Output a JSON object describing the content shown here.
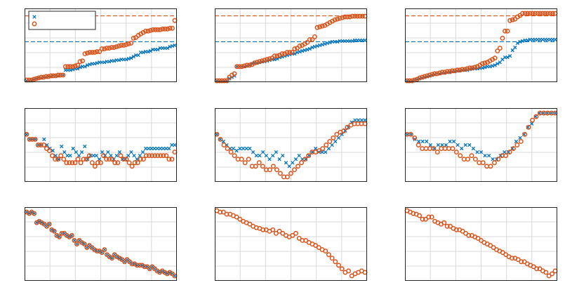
{
  "chart_data": [
    {
      "type": "scatter",
      "refs": [
        {
          "y": 0.55,
          "color": "#0072BD"
        },
        {
          "y": 0.915,
          "color": "#D95319"
        }
      ],
      "series": [
        {
          "marker": "x",
          "color": "#0072BD",
          "values": [
            0.0,
            0.0,
            0.0,
            0.02,
            0.03,
            0.04,
            0.04,
            0.05,
            0.05,
            0.06,
            0.06,
            0.07,
            0.07,
            0.07,
            0.08,
            0.08,
            0.15,
            0.15,
            0.15,
            0.16,
            0.17,
            0.17,
            0.19,
            0.2,
            0.2,
            0.22,
            0.23,
            0.24,
            0.24,
            0.25,
            0.26,
            0.26,
            0.26,
            0.27,
            0.27,
            0.28,
            0.28,
            0.29,
            0.29,
            0.3,
            0.3,
            0.3,
            0.31,
            0.32,
            0.34,
            0.36,
            0.36,
            0.4,
            0.4,
            0.41,
            0.41,
            0.42,
            0.44,
            0.44,
            0.44,
            0.46,
            0.46,
            0.46,
            0.46,
            0.48,
            0.49,
            0.5
          ]
        },
        {
          "marker": "o",
          "color": "#D95319",
          "values": [
            0.01,
            0.01,
            0.01,
            0.02,
            0.03,
            0.04,
            0.05,
            0.05,
            0.06,
            0.06,
            0.07,
            0.07,
            0.07,
            0.08,
            0.08,
            0.08,
            0.2,
            0.2,
            0.2,
            0.2,
            0.21,
            0.22,
            0.27,
            0.28,
            0.38,
            0.39,
            0.4,
            0.4,
            0.4,
            0.41,
            0.41,
            0.45,
            0.45,
            0.46,
            0.46,
            0.47,
            0.47,
            0.48,
            0.49,
            0.5,
            0.5,
            0.51,
            0.52,
            0.53,
            0.6,
            0.61,
            0.64,
            0.66,
            0.68,
            0.7,
            0.7,
            0.71,
            0.72,
            0.72,
            0.72,
            0.72,
            0.73,
            0.73,
            0.73,
            0.74,
            0.74,
            0.85
          ]
        }
      ],
      "legend": [
        "",
        ""
      ]
    },
    {
      "type": "scatter",
      "refs": [
        {
          "y": 0.55,
          "color": "#0072BD"
        },
        {
          "y": 0.915,
          "color": "#D95319"
        }
      ],
      "series": [
        {
          "marker": "x",
          "color": "#0072BD",
          "values": [
            0.0,
            0.0,
            0.0,
            0.0,
            0.0,
            0.03,
            0.05,
            0.07,
            0.2,
            0.2,
            0.2,
            0.2,
            0.21,
            0.22,
            0.24,
            0.25,
            0.25,
            0.26,
            0.27,
            0.27,
            0.28,
            0.29,
            0.3,
            0.3,
            0.31,
            0.33,
            0.34,
            0.35,
            0.36,
            0.37,
            0.38,
            0.38,
            0.4,
            0.41,
            0.42,
            0.43,
            0.44,
            0.45,
            0.47,
            0.48,
            0.49,
            0.5,
            0.51,
            0.52,
            0.53,
            0.54,
            0.55,
            0.55,
            0.55,
            0.56,
            0.56,
            0.56,
            0.56,
            0.56,
            0.56,
            0.57,
            0.57,
            0.57,
            0.57,
            0.57
          ]
        },
        {
          "marker": "o",
          "color": "#D95319",
          "values": [
            0.0,
            0.0,
            0.0,
            0.0,
            0.0,
            0.05,
            0.08,
            0.1,
            0.2,
            0.2,
            0.2,
            0.21,
            0.22,
            0.22,
            0.23,
            0.25,
            0.26,
            0.27,
            0.28,
            0.29,
            0.3,
            0.31,
            0.32,
            0.35,
            0.35,
            0.36,
            0.38,
            0.38,
            0.4,
            0.4,
            0.4,
            0.45,
            0.46,
            0.49,
            0.5,
            0.52,
            0.54,
            0.58,
            0.58,
            0.62,
            0.75,
            0.76,
            0.77,
            0.78,
            0.8,
            0.82,
            0.84,
            0.86,
            0.87,
            0.88,
            0.89,
            0.9,
            0.9,
            0.9,
            0.91,
            0.91,
            0.91,
            0.91,
            0.91,
            0.91
          ]
        }
      ]
    },
    {
      "type": "scatter",
      "refs": [
        {
          "y": 0.55,
          "color": "#0072BD"
        },
        {
          "y": 0.915,
          "color": "#D95319"
        }
      ],
      "series": [
        {
          "marker": "x",
          "color": "#0072BD",
          "values": [
            0.0,
            0.0,
            0.0,
            0.01,
            0.02,
            0.03,
            0.04,
            0.05,
            0.06,
            0.07,
            0.08,
            0.09,
            0.1,
            0.1,
            0.11,
            0.11,
            0.12,
            0.12,
            0.13,
            0.13,
            0.14,
            0.14,
            0.15,
            0.15,
            0.15,
            0.16,
            0.17,
            0.17,
            0.17,
            0.18,
            0.18,
            0.19,
            0.2,
            0.2,
            0.21,
            0.22,
            0.24,
            0.26,
            0.3,
            0.33,
            0.33,
            0.35,
            0.43,
            0.47,
            0.53,
            0.55,
            0.56,
            0.57,
            0.57,
            0.58,
            0.58,
            0.58,
            0.58,
            0.58,
            0.58,
            0.58,
            0.58,
            0.58,
            0.58,
            0.58
          ]
        },
        {
          "marker": "o",
          "color": "#D95319",
          "values": [
            0.0,
            0.0,
            0.0,
            0.01,
            0.02,
            0.04,
            0.05,
            0.06,
            0.07,
            0.08,
            0.09,
            0.1,
            0.1,
            0.11,
            0.12,
            0.12,
            0.13,
            0.13,
            0.14,
            0.14,
            0.15,
            0.15,
            0.16,
            0.16,
            0.17,
            0.18,
            0.18,
            0.19,
            0.2,
            0.22,
            0.24,
            0.25,
            0.26,
            0.28,
            0.3,
            0.32,
            0.42,
            0.46,
            0.6,
            0.7,
            0.7,
            0.85,
            0.86,
            0.87,
            0.9,
            0.92,
            0.95,
            0.95,
            0.95,
            0.95,
            0.95,
            0.95,
            0.95,
            0.95,
            0.95,
            0.95,
            0.95,
            0.95,
            0.95,
            0.95
          ]
        }
      ]
    },
    {
      "type": "scatter",
      "series": [
        {
          "marker": "x",
          "color": "#0072BD",
          "values": [
            0.65,
            0.58,
            0.58,
            0.58,
            0.5,
            0.5,
            0.58,
            0.5,
            0.45,
            0.42,
            0.35,
            0.3,
            0.48,
            0.4,
            0.35,
            0.35,
            0.45,
            0.4,
            0.35,
            0.4,
            0.48,
            0.3,
            0.35,
            0.35,
            0.35,
            0.3,
            0.4,
            0.35,
            0.4,
            0.35,
            0.3,
            0.35,
            0.4,
            0.3,
            0.3,
            0.35,
            0.4,
            0.35,
            0.3,
            0.35,
            0.4,
            0.45,
            0.45,
            0.45,
            0.45,
            0.45,
            0.45,
            0.45,
            0.45,
            0.45,
            0.5,
            0.5
          ]
        },
        {
          "marker": "o",
          "color": "#D95319",
          "values": [
            0.65,
            0.58,
            0.58,
            0.58,
            0.5,
            0.5,
            0.5,
            0.45,
            0.42,
            0.35,
            0.3,
            0.3,
            0.35,
            0.3,
            0.25,
            0.25,
            0.25,
            0.25,
            0.3,
            0.25,
            0.3,
            0.3,
            0.35,
            0.25,
            0.2,
            0.25,
            0.25,
            0.35,
            0.3,
            0.3,
            0.3,
            0.25,
            0.25,
            0.35,
            0.3,
            0.3,
            0.25,
            0.2,
            0.25,
            0.25,
            0.3,
            0.3,
            0.35,
            0.35,
            0.35,
            0.35,
            0.35,
            0.35,
            0.35,
            0.35,
            0.3,
            0.3,
            0.4
          ]
        }
      ]
    },
    {
      "type": "scatter",
      "series": [
        {
          "marker": "x",
          "color": "#0072BD",
          "values": [
            0.65,
            0.58,
            0.55,
            0.5,
            0.45,
            0.45,
            0.42,
            0.45,
            0.45,
            0.45,
            0.45,
            0.4,
            0.35,
            0.35,
            0.4,
            0.35,
            0.3,
            0.35,
            0.4,
            0.3,
            0.35,
            0.25,
            0.2,
            0.25,
            0.3,
            0.35,
            0.3,
            0.3,
            0.35,
            0.4,
            0.45,
            0.4,
            0.4,
            0.4,
            0.45,
            0.5,
            0.55,
            0.6,
            0.65,
            0.7,
            0.75,
            0.82,
            0.85,
            0.85,
            0.85,
            0.85
          ]
        },
        {
          "marker": "o",
          "color": "#D95319",
          "values": [
            0.65,
            0.58,
            0.5,
            0.45,
            0.4,
            0.35,
            0.3,
            0.3,
            0.25,
            0.3,
            0.2,
            0.2,
            0.25,
            0.2,
            0.15,
            0.15,
            0.2,
            0.15,
            0.1,
            0.05,
            0.05,
            0.1,
            0.15,
            0.2,
            0.25,
            0.3,
            0.35,
            0.4,
            0.4,
            0.42,
            0.45,
            0.5,
            0.55,
            0.6,
            0.65,
            0.68,
            0.7,
            0.75,
            0.78,
            0.8,
            0.8,
            0.8,
            0.8
          ]
        }
      ]
    },
    {
      "type": "scatter",
      "series": [
        {
          "marker": "x",
          "color": "#0072BD",
          "values": [
            0.65,
            0.65,
            0.58,
            0.55,
            0.55,
            0.55,
            0.5,
            0.45,
            0.5,
            0.5,
            0.5,
            0.55,
            0.55,
            0.5,
            0.45,
            0.5,
            0.5,
            0.45,
            0.4,
            0.4,
            0.35,
            0.35,
            0.3,
            0.3,
            0.35,
            0.4,
            0.4,
            0.45,
            0.55,
            0.6,
            0.65,
            0.75,
            0.8,
            0.9,
            0.95,
            0.95,
            0.95,
            0.95,
            0.95
          ]
        },
        {
          "marker": "o",
          "color": "#D95319",
          "values": [
            0.65,
            0.65,
            0.6,
            0.5,
            0.45,
            0.45,
            0.45,
            0.45,
            0.4,
            0.45,
            0.45,
            0.45,
            0.45,
            0.4,
            0.35,
            0.3,
            0.3,
            0.35,
            0.3,
            0.25,
            0.25,
            0.2,
            0.2,
            0.25,
            0.3,
            0.35,
            0.35,
            0.4,
            0.45,
            0.5,
            0.55,
            0.65,
            0.75,
            0.85,
            0.9,
            0.95,
            0.95,
            0.95,
            0.95,
            0.95
          ]
        }
      ]
    },
    {
      "type": "scatter",
      "series": [
        {
          "marker": "o",
          "color": "#D95319",
          "x_cross_color": "#0072BD",
          "values": [
            0.95,
            0.93,
            0.95,
            0.93,
            0.8,
            0.82,
            0.8,
            0.78,
            0.75,
            0.78,
            0.7,
            0.68,
            0.62,
            0.6,
            0.65,
            0.65,
            0.62,
            0.6,
            0.62,
            0.55,
            0.5,
            0.55,
            0.52,
            0.5,
            0.45,
            0.48,
            0.45,
            0.42,
            0.4,
            0.4,
            0.38,
            0.42,
            0.35,
            0.32,
            0.3,
            0.35,
            0.32,
            0.3,
            0.28,
            0.25,
            0.28,
            0.25,
            0.22,
            0.22,
            0.2,
            0.2,
            0.2,
            0.18,
            0.18,
            0.15,
            0.18,
            0.15,
            0.12,
            0.1,
            0.12,
            0.1,
            0.08,
            0.1,
            0.08,
            0.05
          ]
        }
      ]
    },
    {
      "type": "scatter",
      "series": [
        {
          "marker": "o",
          "color": "#D95319",
          "values": [
            0.97,
            0.95,
            0.95,
            0.92,
            0.92,
            0.9,
            0.88,
            0.85,
            0.82,
            0.8,
            0.78,
            0.75,
            0.73,
            0.72,
            0.7,
            0.7,
            0.68,
            0.7,
            0.65,
            0.68,
            0.65,
            0.62,
            0.6,
            0.62,
            0.65,
            0.58,
            0.55,
            0.55,
            0.52,
            0.5,
            0.48,
            0.45,
            0.42,
            0.4,
            0.35,
            0.3,
            0.25,
            0.2,
            0.15,
            0.1,
            0.12,
            0.05,
            0.08,
            0.1,
            0.12,
            0.1
          ]
        }
      ]
    },
    {
      "type": "scatter",
      "series": [
        {
          "marker": "o",
          "color": "#D95319",
          "values": [
            0.97,
            0.95,
            0.93,
            0.92,
            0.9,
            0.85,
            0.85,
            0.88,
            0.88,
            0.82,
            0.8,
            0.78,
            0.8,
            0.75,
            0.75,
            0.72,
            0.7,
            0.7,
            0.68,
            0.65,
            0.62,
            0.62,
            0.6,
            0.58,
            0.55,
            0.52,
            0.5,
            0.48,
            0.45,
            0.42,
            0.4,
            0.38,
            0.35,
            0.32,
            0.3,
            0.3,
            0.28,
            0.25,
            0.25,
            0.22,
            0.2,
            0.18,
            0.15,
            0.15,
            0.12,
            0.1,
            0.05,
            0.08,
            0.12
          ]
        }
      ]
    }
  ]
}
